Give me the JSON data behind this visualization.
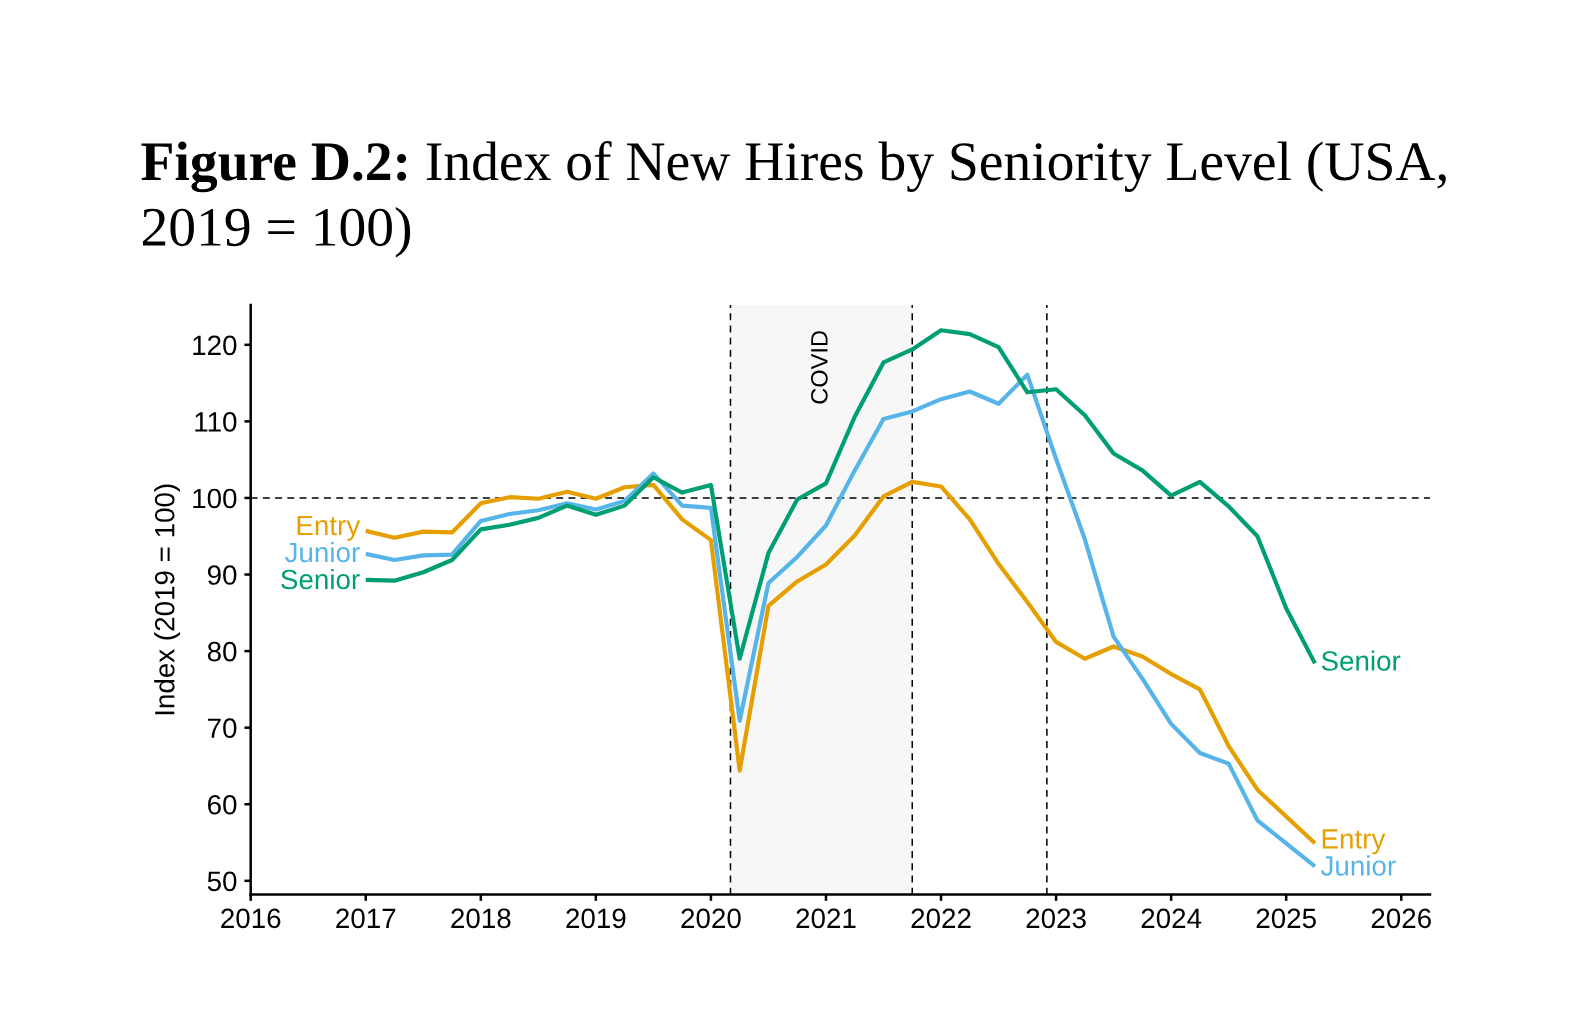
{
  "chart_data": {
    "type": "line",
    "title": "Figure D.2: Index of New Hires by Seniority Level (USA, 2019 = 100)",
    "ylabel": "Index (2019 = 100)",
    "x": [
      2017,
      2017.25,
      2017.5,
      2017.75,
      2018,
      2018.25,
      2018.5,
      2018.75,
      2019,
      2019.25,
      2019.5,
      2019.75,
      2020,
      2020.25,
      2020.5,
      2020.75,
      2021,
      2021.25,
      2021.5,
      2021.75,
      2022,
      2022.25,
      2022.5,
      2022.75,
      2023,
      2023.25,
      2023.5,
      2023.75,
      2024,
      2024.25,
      2024.5,
      2024.75,
      2025,
      2025.25
    ],
    "series": [
      {
        "name": "Entry",
        "color": "#e69f00",
        "values": [
          95.7,
          94.8,
          95.6,
          95.5,
          99.3,
          100.1,
          99.9,
          100.8,
          99.9,
          101.4,
          101.7,
          97.2,
          94.5,
          64.4,
          85.9,
          89.1,
          91.3,
          95.1,
          100.2,
          102.1,
          101.5,
          97.2,
          91.4,
          86.4,
          81.2,
          79.0,
          80.6,
          79.3,
          77.0,
          75.0,
          67.6,
          61.9,
          58.4,
          54.9
        ]
      },
      {
        "name": "Junior",
        "color": "#56b4e9",
        "values": [
          92.7,
          91.9,
          92.5,
          92.6,
          97.0,
          97.9,
          98.4,
          99.3,
          98.5,
          99.6,
          103.2,
          99.0,
          98.7,
          70.9,
          88.9,
          92.3,
          96.4,
          103.6,
          110.3,
          111.3,
          112.9,
          113.9,
          112.3,
          116.1,
          105.1,
          94.6,
          81.9,
          76.4,
          70.5,
          66.7,
          65.3,
          57.9,
          54.9,
          51.9
        ]
      },
      {
        "name": "Senior",
        "color": "#009e73",
        "values": [
          89.3,
          89.2,
          90.3,
          91.9,
          95.9,
          96.5,
          97.4,
          99.0,
          97.8,
          99.0,
          102.7,
          100.7,
          101.7,
          79.0,
          92.8,
          99.8,
          101.9,
          110.6,
          117.7,
          119.4,
          121.9,
          121.4,
          119.7,
          113.8,
          114.2,
          110.8,
          105.8,
          103.6,
          100.3,
          102.1,
          98.9,
          95.0,
          85.6,
          78.4
        ]
      }
    ],
    "xlim": [
      2016,
      2026.25
    ],
    "ylim": [
      48.2,
      125.2
    ],
    "xticks": [
      2016,
      2017,
      2018,
      2019,
      2020,
      2021,
      2022,
      2023,
      2024,
      2025,
      2026
    ],
    "yticks": [
      50,
      60,
      70,
      80,
      90,
      100,
      110,
      120
    ],
    "ref_lines": [
      {
        "axis": "y",
        "value": 100,
        "color": "#000000",
        "line_style": "dashed"
      },
      {
        "axis": "x",
        "value": 2020.17,
        "color": "#000000",
        "line_style": "dashed"
      },
      {
        "axis": "x",
        "value": 2021.75,
        "color": "#000000",
        "line_style": "dashed"
      },
      {
        "axis": "x",
        "value": 2022.92,
        "color": "#000000",
        "line_style": "dashed"
      }
    ],
    "bands": [
      {
        "axis": "x",
        "from": 2020.17,
        "to": 2021.75,
        "label": "COVID",
        "color": "#f7f7f7"
      }
    ],
    "line_style": "solid"
  }
}
